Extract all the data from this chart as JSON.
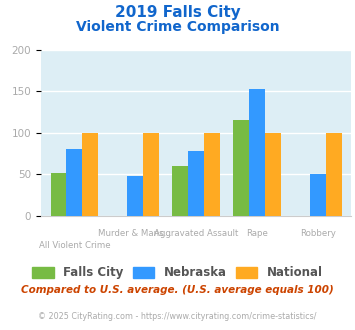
{
  "title_line1": "2019 Falls City",
  "title_line2": "Violent Crime Comparison",
  "falls_city": [
    52,
    0,
    60,
    115,
    0
  ],
  "nebraska": [
    80,
    48,
    78,
    152,
    50
  ],
  "national": [
    100,
    100,
    100,
    100,
    100
  ],
  "fc_color": "#77bb44",
  "ne_color": "#3399ff",
  "nat_color": "#ffaa22",
  "ylim": [
    0,
    200
  ],
  "yticks": [
    0,
    50,
    100,
    150,
    200
  ],
  "bg_color": "#ddeef5",
  "title_color": "#1166cc",
  "axis_label_color": "#aaaaaa",
  "legend_labels": [
    "Falls City",
    "Nebraska",
    "National"
  ],
  "legend_text_color": "#555555",
  "row1_labels": [
    "",
    "Murder & Mans...",
    "Aggravated Assault",
    "Rape",
    "Robbery"
  ],
  "row2_labels": [
    "All Violent Crime",
    "",
    "",
    "",
    ""
  ],
  "footnote1": "Compared to U.S. average. (U.S. average equals 100)",
  "footnote2": "© 2025 CityRating.com - https://www.cityrating.com/crime-statistics/",
  "footnote1_color": "#cc4400",
  "footnote2_color": "#aaaaaa"
}
